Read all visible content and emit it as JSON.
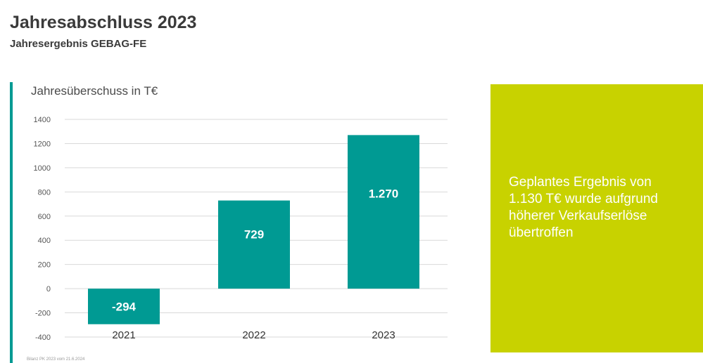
{
  "header": {
    "title": "Jahresabschluss 2023",
    "subtitle": "Jahresergebnis GEBAG-FE"
  },
  "chart_data": {
    "type": "bar",
    "title": "Jahresüberschuss in T€",
    "categories": [
      "2021",
      "2022",
      "2023"
    ],
    "values": [
      -294,
      729,
      1270
    ],
    "value_labels": [
      "-294",
      "729",
      "1.270"
    ],
    "ylim": [
      -400,
      1400
    ],
    "yticks": [
      1400,
      1200,
      1000,
      800,
      600,
      400,
      200,
      0,
      -200,
      -400
    ],
    "grid": true,
    "bar_color": "#009a93"
  },
  "note": {
    "text": "Geplantes Ergebnis von 1.130 T€ wurde aufgrund höherer Verkaufserlöse übertroffen",
    "background": "#c8d200"
  },
  "source": {
    "text": "Bilanz PK 2023 vom 21.6.2024"
  }
}
